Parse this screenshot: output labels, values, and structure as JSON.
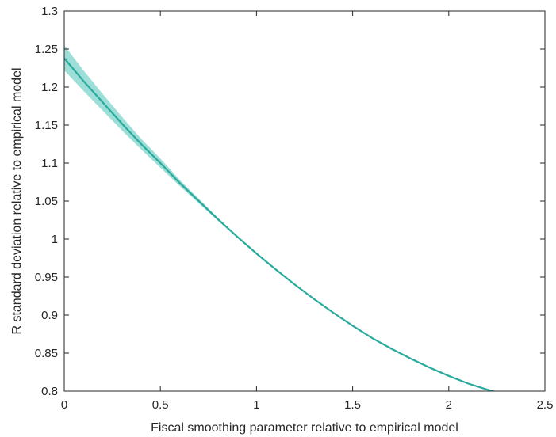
{
  "chart_data": {
    "type": "line",
    "title": "",
    "xlabel": "Fiscal smoothing parameter relative to empirical model",
    "ylabel": "R standard deviation relative to empirical model",
    "xlim": [
      0,
      2.5
    ],
    "ylim": [
      0.8,
      1.3
    ],
    "xticks": [
      0,
      0.5,
      1,
      1.5,
      2,
      2.5
    ],
    "xtick_labels": [
      "0",
      "0.5",
      "1",
      "1.5",
      "2",
      "2.5"
    ],
    "yticks": [
      0.8,
      0.85,
      0.9,
      0.95,
      1,
      1.05,
      1.1,
      1.15,
      1.2,
      1.25,
      1.3
    ],
    "ytick_labels": [
      "0.8",
      "0.85",
      "0.9",
      "0.95",
      "1",
      "1.05",
      "1.1",
      "1.15",
      "1.2",
      "1.25",
      "1.3"
    ],
    "grid": false,
    "line_color": "#2aaa9d",
    "band_color": "#8cd9d1",
    "series": [
      {
        "x": [
          0,
          0.1,
          0.2,
          0.3,
          0.4,
          0.5,
          0.6,
          0.7,
          0.8,
          0.9,
          1.0,
          1.1,
          1.2,
          1.3,
          1.4,
          1.5,
          1.6,
          1.7,
          1.8,
          1.9,
          2.0,
          2.1,
          2.2,
          2.3,
          2.4,
          2.5
        ],
        "y": [
          1.238,
          1.208,
          1.18,
          1.152,
          1.125,
          1.1,
          1.074,
          1.05,
          1.026,
          1.003,
          0.981,
          0.96,
          0.94,
          0.921,
          0.903,
          0.886,
          0.87,
          0.856,
          0.843,
          0.831,
          0.82,
          0.81,
          0.802,
          0.795,
          0.789,
          0.787
        ],
        "lower": [
          1.222,
          1.195,
          1.169,
          1.143,
          1.118,
          1.094,
          1.07,
          1.047,
          1.024,
          1.002,
          0.98,
          0.959,
          0.939,
          0.92,
          0.902,
          0.885,
          0.869,
          0.855,
          0.842,
          0.83,
          0.819,
          0.809,
          0.801,
          0.794,
          0.788,
          0.786
        ],
        "upper": [
          1.255,
          1.222,
          1.191,
          1.161,
          1.132,
          1.106,
          1.078,
          1.053,
          1.028,
          1.004,
          0.982,
          0.961,
          0.941,
          0.922,
          0.904,
          0.887,
          0.871,
          0.857,
          0.844,
          0.832,
          0.821,
          0.811,
          0.803,
          0.796,
          0.791,
          0.789
        ]
      }
    ]
  }
}
